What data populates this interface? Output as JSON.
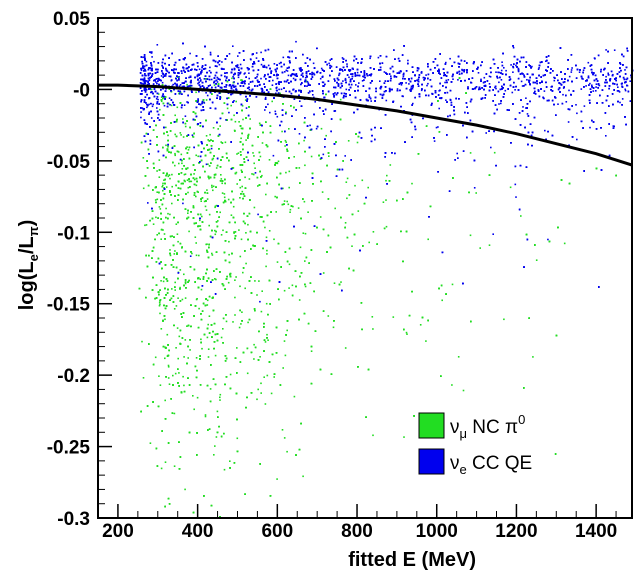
{
  "chart_data": {
    "type": "scatter",
    "xlabel": "fitted E (MeV)",
    "ylabel_parts": {
      "prefix": "log(L",
      "sub1": "e",
      "mid": "/L",
      "sub2": "π",
      "suffix": ")"
    },
    "xlim": [
      150,
      1490
    ],
    "ylim": [
      -0.3,
      0.05
    ],
    "x_ticks": [
      200,
      400,
      600,
      800,
      1000,
      1200,
      1400
    ],
    "x_tick_labels": [
      "200",
      "400",
      "600",
      "800",
      "1000",
      "1200",
      "1400"
    ],
    "y_ticks": [
      0.05,
      0,
      -0.05,
      -0.1,
      -0.15,
      -0.2,
      -0.25,
      -0.3
    ],
    "y_tick_labels": [
      "0.05",
      "-0",
      "-0.05",
      "-0.1",
      "-0.15",
      "-0.2",
      "-0.25",
      "-0.3"
    ],
    "grid": false,
    "legend_placement": "bottom-right",
    "series": [
      {
        "name_parts": {
          "base": "ν",
          "sub": "μ",
          "rest": " NC π",
          "sup": "0"
        },
        "color": "#22dd22",
        "distribution": {
          "x_range": [
            250,
            1450
          ],
          "x_peak": 450,
          "y_peak": -0.1,
          "y_range": [
            -0.3,
            0.01
          ]
        }
      },
      {
        "name_parts": {
          "base": "ν",
          "sub": "e",
          "rest": " CC QE",
          "sup": ""
        },
        "color": "#0000ee",
        "distribution": {
          "x_range": [
            255,
            1490
          ],
          "y_center": 0.008,
          "y_range": [
            -0.09,
            0.035
          ]
        }
      }
    ],
    "cut_curve": {
      "points": [
        [
          150,
          0.003
        ],
        [
          200,
          0.003
        ],
        [
          300,
          0.002
        ],
        [
          400,
          0.0
        ],
        [
          500,
          -0.002
        ],
        [
          600,
          -0.004
        ],
        [
          700,
          -0.007
        ],
        [
          800,
          -0.011
        ],
        [
          900,
          -0.015
        ],
        [
          1000,
          -0.02
        ],
        [
          1100,
          -0.025
        ],
        [
          1200,
          -0.031
        ],
        [
          1300,
          -0.038
        ],
        [
          1400,
          -0.045
        ],
        [
          1490,
          -0.053
        ]
      ],
      "color": "#000000"
    }
  }
}
